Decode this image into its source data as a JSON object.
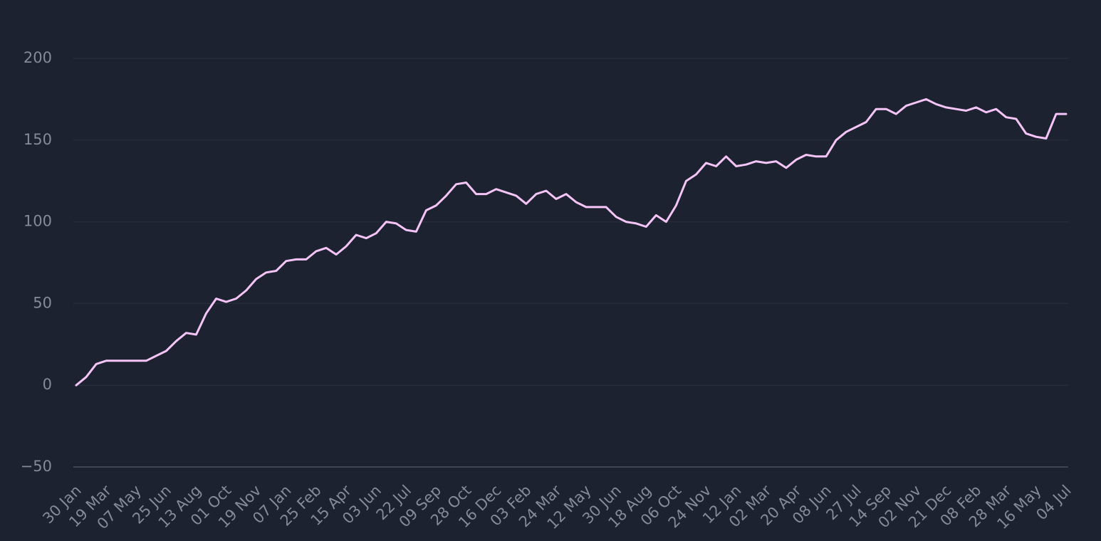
{
  "chart_data": {
    "type": "line",
    "categories": [
      "30 Jan",
      null,
      null,
      "19 Mar",
      null,
      null,
      "07 May",
      null,
      null,
      "25 Jun",
      null,
      null,
      "13 Aug",
      null,
      null,
      "01 Oct",
      null,
      null,
      "19 Nov",
      null,
      null,
      "07 Jan",
      null,
      null,
      "25 Feb",
      null,
      null,
      "15 Apr",
      null,
      null,
      "03 Jun",
      null,
      null,
      "22 Jul",
      null,
      null,
      "09 Sep",
      null,
      null,
      "28 Oct",
      null,
      null,
      "16 Dec",
      null,
      null,
      "03 Feb",
      null,
      null,
      "24 Mar",
      null,
      null,
      "12 May",
      null,
      null,
      "30 Jun",
      null,
      null,
      "18 Aug",
      null,
      null,
      "06 Oct",
      null,
      null,
      "24 Nov",
      null,
      null,
      "12 Jan",
      null,
      null,
      "02 Mar",
      null,
      null,
      "20 Apr",
      null,
      null,
      "08 Jun",
      null,
      null,
      "27 Jul",
      null,
      null,
      "14 Sep",
      null,
      null,
      "02 Nov",
      null,
      null,
      "21 Dec",
      null,
      null,
      "08 Feb",
      null,
      null,
      "28 Mar",
      null,
      null,
      "16 May",
      null,
      null,
      "04 Jul"
    ],
    "values": [
      0,
      5,
      13,
      15,
      15,
      15,
      15,
      15,
      18,
      21,
      27,
      32,
      31,
      44,
      53,
      51,
      53,
      58,
      65,
      69,
      70,
      76,
      77,
      77,
      82,
      84,
      80,
      85,
      92,
      90,
      93,
      100,
      99,
      95,
      94,
      107,
      110,
      116,
      123,
      124,
      117,
      117,
      120,
      118,
      116,
      111,
      117,
      119,
      114,
      117,
      112,
      109,
      109,
      109,
      103,
      100,
      99,
      97,
      104,
      100,
      110,
      125,
      129,
      136,
      134,
      140,
      134,
      135,
      137,
      136,
      137,
      133,
      138,
      141,
      140,
      140,
      150,
      155,
      158,
      161,
      169,
      169,
      166,
      171,
      173,
      175,
      172,
      170,
      169,
      168,
      170,
      167,
      169,
      164,
      163,
      154,
      152,
      151,
      166,
      166
    ],
    "color": "#f4c4f6",
    "ylim": [
      -50,
      200
    ],
    "yticks": [
      {
        "value": -50,
        "label": "−50"
      },
      0,
      50,
      100,
      150,
      200
    ],
    "grid": true
  }
}
